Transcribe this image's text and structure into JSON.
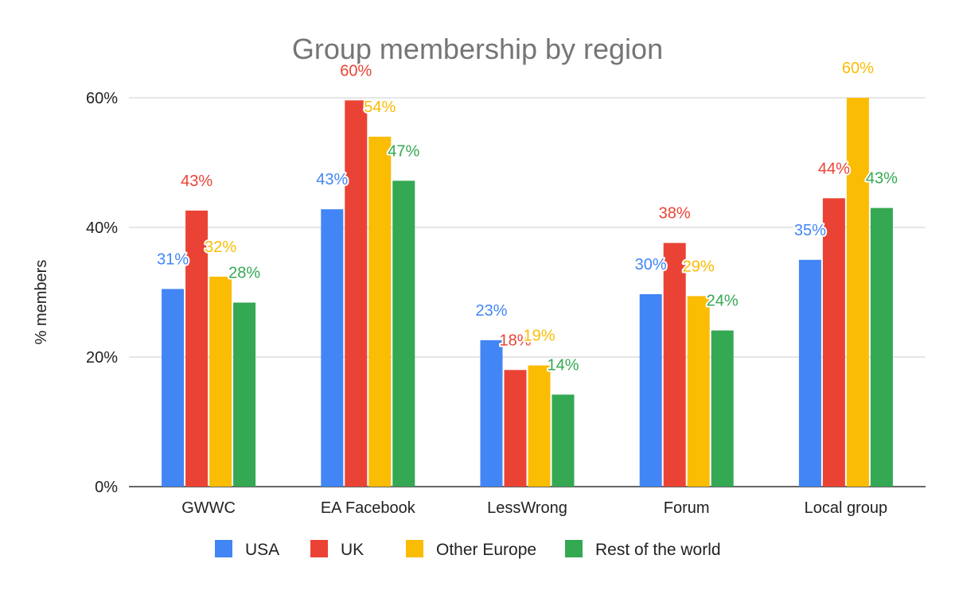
{
  "chart_data": {
    "type": "bar",
    "title": "Group membership by region",
    "xlabel": "",
    "ylabel": "% members",
    "ylim": [
      0,
      60
    ],
    "yticks": [
      "0%",
      "20%",
      "40%",
      "60%"
    ],
    "grid": true,
    "legend_position": "bottom",
    "categories": [
      "GWWC",
      "EA Facebook",
      "LessWrong",
      "Forum",
      "Local group"
    ],
    "series": [
      {
        "name": "USA",
        "color": "#4285F4",
        "values": [
          30.5,
          42.8,
          22.6,
          29.7,
          35.0
        ],
        "labels": [
          "31%",
          "43%",
          "23%",
          "30%",
          "35%"
        ]
      },
      {
        "name": "UK",
        "color": "#EA4335",
        "values": [
          42.6,
          59.6,
          18.0,
          37.6,
          44.5
        ],
        "labels": [
          "43%",
          "60%",
          "18%",
          "38%",
          "44%"
        ]
      },
      {
        "name": "Other Europe",
        "color": "#FBBC04",
        "values": [
          32.4,
          54.0,
          18.7,
          29.4,
          60.0
        ],
        "labels": [
          "32%",
          "54%",
          "19%",
          "29%",
          "60%"
        ]
      },
      {
        "name": "Rest of the world",
        "color": "#34A853",
        "values": [
          28.4,
          47.2,
          14.2,
          24.1,
          43.0
        ],
        "labels": [
          "28%",
          "47%",
          "14%",
          "24%",
          "43%"
        ]
      }
    ]
  }
}
